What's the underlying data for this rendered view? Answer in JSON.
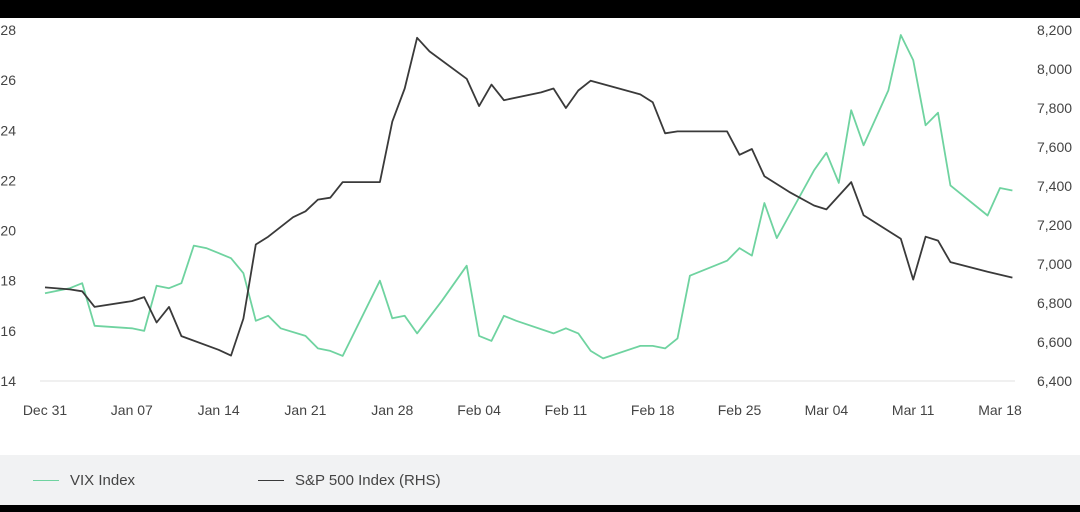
{
  "chart_data": {
    "type": "line",
    "title": "",
    "xlabel": "",
    "ylabel": "",
    "x_ticks": [
      "Dec 31",
      "Jan 07",
      "Jan 14",
      "Jan 21",
      "Jan 28",
      "Feb 04",
      "Feb 11",
      "Feb 18",
      "Feb 25",
      "Mar 04",
      "Mar 11",
      "Mar 18"
    ],
    "y_left": {
      "ticks": [
        "14",
        "16",
        "18",
        "20",
        "22",
        "24",
        "26",
        "28"
      ],
      "ylim": [
        14,
        28
      ]
    },
    "y_right": {
      "ticks": [
        "6,400",
        "6,600",
        "6,800",
        "7,000",
        "7,200",
        "7,400",
        "7,600",
        "7,800",
        "8,000",
        "8,200"
      ],
      "ylim": [
        6400,
        8200
      ]
    },
    "grid": false,
    "legend_position": "bottom-left",
    "series": [
      {
        "name": "VIX Index",
        "axis": "left",
        "color": "#6fd3a0",
        "points": [
          [
            "2024-12-31",
            17.5
          ],
          [
            "2025-01-02",
            17.7
          ],
          [
            "2025-01-03",
            17.9
          ],
          [
            "2025-01-04",
            16.2
          ],
          [
            "2025-01-07",
            16.1
          ],
          [
            "2025-01-08",
            16.0
          ],
          [
            "2025-01-09",
            17.8
          ],
          [
            "2025-01-10",
            17.7
          ],
          [
            "2025-01-11",
            17.9
          ],
          [
            "2025-01-12",
            19.4
          ],
          [
            "2025-01-13",
            19.3
          ],
          [
            "2025-01-14",
            19.1
          ],
          [
            "2025-01-15",
            18.9
          ],
          [
            "2025-01-16",
            18.3
          ],
          [
            "2025-01-17",
            16.4
          ],
          [
            "2025-01-18",
            16.6
          ],
          [
            "2025-01-19",
            16.1
          ],
          [
            "2025-01-21",
            15.8
          ],
          [
            "2025-01-22",
            15.3
          ],
          [
            "2025-01-23",
            15.2
          ],
          [
            "2025-01-24",
            15.0
          ],
          [
            "2025-01-27",
            18.0
          ],
          [
            "2025-01-28",
            16.5
          ],
          [
            "2025-01-29",
            16.6
          ],
          [
            "2025-01-30",
            15.9
          ],
          [
            "2025-02-01",
            17.2
          ],
          [
            "2025-02-03",
            18.6
          ],
          [
            "2025-02-04",
            15.8
          ],
          [
            "2025-02-05",
            15.6
          ],
          [
            "2025-02-06",
            16.6
          ],
          [
            "2025-02-07",
            16.4
          ],
          [
            "2025-02-10",
            15.9
          ],
          [
            "2025-02-11",
            16.1
          ],
          [
            "2025-02-12",
            15.9
          ],
          [
            "2025-02-13",
            15.2
          ],
          [
            "2025-02-14",
            14.9
          ],
          [
            "2025-02-17",
            15.4
          ],
          [
            "2025-02-18",
            15.4
          ],
          [
            "2025-02-19",
            15.3
          ],
          [
            "2025-02-20",
            15.7
          ],
          [
            "2025-02-21",
            18.2
          ],
          [
            "2025-02-24",
            18.8
          ],
          [
            "2025-02-25",
            19.3
          ],
          [
            "2025-02-26",
            19.0
          ],
          [
            "2025-02-27",
            21.1
          ],
          [
            "2025-02-28",
            19.7
          ],
          [
            "2025-03-01",
            20.6
          ],
          [
            "2025-03-03",
            22.4
          ],
          [
            "2025-03-04",
            23.1
          ],
          [
            "2025-03-05",
            21.9
          ],
          [
            "2025-03-06",
            24.8
          ],
          [
            "2025-03-07",
            23.4
          ],
          [
            "2025-03-09",
            25.6
          ],
          [
            "2025-03-10",
            27.8
          ],
          [
            "2025-03-11",
            26.8
          ],
          [
            "2025-03-12",
            24.2
          ],
          [
            "2025-03-13",
            24.7
          ],
          [
            "2025-03-14",
            21.8
          ],
          [
            "2025-03-17",
            20.6
          ],
          [
            "2025-03-18",
            21.7
          ],
          [
            "2025-03-19",
            21.6
          ]
        ]
      },
      {
        "name": "S&P 500 Index (RHS)",
        "axis": "right",
        "color": "#3a3a3a",
        "points": [
          [
            "2024-12-31",
            6880
          ],
          [
            "2025-01-02",
            6870
          ],
          [
            "2025-01-03",
            6860
          ],
          [
            "2025-01-04",
            6780
          ],
          [
            "2025-01-07",
            6810
          ],
          [
            "2025-01-08",
            6830
          ],
          [
            "2025-01-09",
            6700
          ],
          [
            "2025-01-10",
            6780
          ],
          [
            "2025-01-11",
            6630
          ],
          [
            "2025-01-14",
            6560
          ],
          [
            "2025-01-15",
            6530
          ],
          [
            "2025-01-16",
            6720
          ],
          [
            "2025-01-17",
            7100
          ],
          [
            "2025-01-18",
            7140
          ],
          [
            "2025-01-20",
            7240
          ],
          [
            "2025-01-21",
            7270
          ],
          [
            "2025-01-22",
            7330
          ],
          [
            "2025-01-23",
            7340
          ],
          [
            "2025-01-24",
            7420
          ],
          [
            "2025-01-27",
            7420
          ],
          [
            "2025-01-28",
            7730
          ],
          [
            "2025-01-29",
            7900
          ],
          [
            "2025-01-30",
            8160
          ],
          [
            "2025-01-31",
            8090
          ],
          [
            "2025-02-03",
            7950
          ],
          [
            "2025-02-04",
            7810
          ],
          [
            "2025-02-05",
            7920
          ],
          [
            "2025-02-06",
            7840
          ],
          [
            "2025-02-09",
            7880
          ],
          [
            "2025-02-10",
            7900
          ],
          [
            "2025-02-11",
            7800
          ],
          [
            "2025-02-12",
            7890
          ],
          [
            "2025-02-13",
            7940
          ],
          [
            "2025-02-17",
            7870
          ],
          [
            "2025-02-18",
            7830
          ],
          [
            "2025-02-19",
            7670
          ],
          [
            "2025-02-20",
            7680
          ],
          [
            "2025-02-24",
            7680
          ],
          [
            "2025-02-25",
            7560
          ],
          [
            "2025-02-26",
            7590
          ],
          [
            "2025-02-27",
            7450
          ],
          [
            "2025-03-01",
            7370
          ],
          [
            "2025-03-03",
            7300
          ],
          [
            "2025-03-04",
            7280
          ],
          [
            "2025-03-06",
            7420
          ],
          [
            "2025-03-07",
            7250
          ],
          [
            "2025-03-10",
            7130
          ],
          [
            "2025-03-11",
            6920
          ],
          [
            "2025-03-12",
            7140
          ],
          [
            "2025-03-13",
            7120
          ],
          [
            "2025-03-14",
            7010
          ],
          [
            "2025-03-17",
            6960
          ],
          [
            "2025-03-19",
            6930
          ]
        ]
      }
    ]
  },
  "legend": [
    {
      "label": "VIX Index",
      "color": "#6fd3a0"
    },
    {
      "label": "S&P 500 Index (RHS)",
      "color": "#3a3a3a"
    }
  ]
}
